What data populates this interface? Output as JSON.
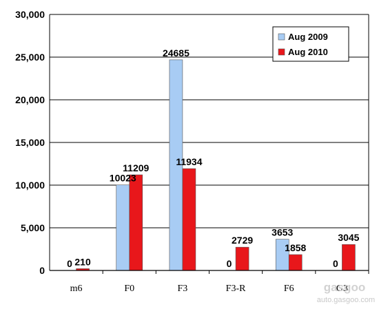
{
  "chart_data": {
    "type": "bar",
    "categories": [
      "m6",
      "F0",
      "F3",
      "F3-R",
      "F6",
      "G3"
    ],
    "series": [
      {
        "name": "Aug 2009",
        "values": [
          0,
          10023,
          24685,
          0,
          3653,
          0
        ],
        "color": "#a8ccf4"
      },
      {
        "name": "Aug 2010",
        "values": [
          210,
          11209,
          11934,
          2729,
          1858,
          3045
        ],
        "color": "#e8171b"
      }
    ],
    "ylim": [
      0,
      30000
    ],
    "yticks": [
      0,
      5000,
      10000,
      15000,
      20000,
      25000,
      30000
    ],
    "ytick_labels": [
      "0",
      "5,000",
      "10,000",
      "15,000",
      "20,000",
      "25,000",
      "30,000"
    ],
    "grid": true,
    "legend_position": "top-right",
    "title": "",
    "xlabel": "",
    "ylabel": ""
  },
  "watermark": {
    "text": "auto.gasgoo.com",
    "logo_text": "gasgoo"
  }
}
